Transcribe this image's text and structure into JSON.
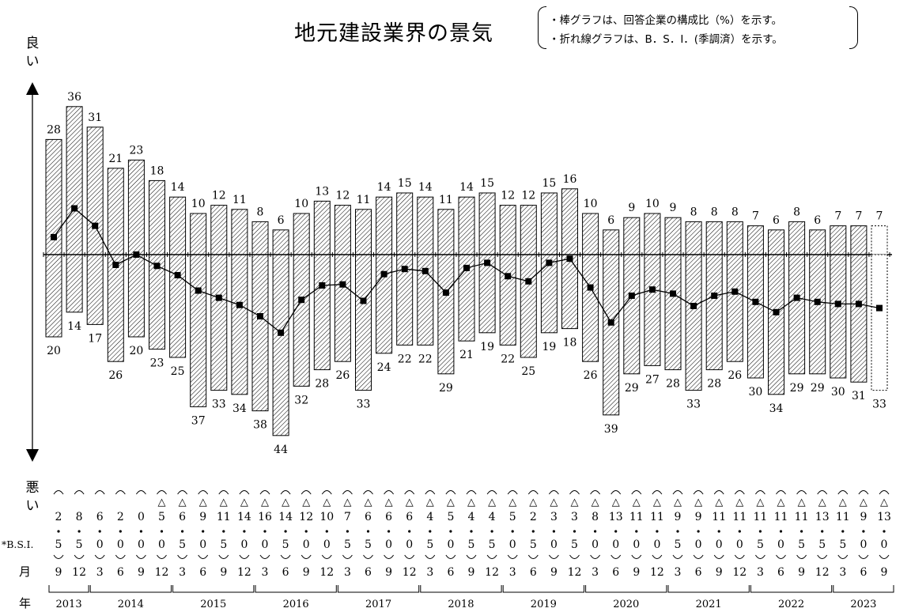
{
  "title": "地元建設業界の景気",
  "notes": [
    "・棒グラフは、回答企業の構成比（%）を示す。",
    "・折れ線グラフは、B．S．I．(季調済）を示す。"
  ],
  "axis_top_label": [
    "良",
    "い"
  ],
  "axis_bottom_label": [
    "悪",
    "い"
  ],
  "row_labels": {
    "bsi": "*B.S.I.",
    "month": "月",
    "year": "年"
  },
  "chart_data": {
    "type": "bar",
    "periods": [
      {
        "year": "2013",
        "month": "9"
      },
      {
        "year": "2013",
        "month": "12"
      },
      {
        "year": "2014",
        "month": "3"
      },
      {
        "year": "2014",
        "month": "6"
      },
      {
        "year": "2014",
        "month": "9"
      },
      {
        "year": "2014",
        "month": "12"
      },
      {
        "year": "2015",
        "month": "3"
      },
      {
        "year": "2015",
        "month": "6"
      },
      {
        "year": "2015",
        "month": "9"
      },
      {
        "year": "2015",
        "month": "12"
      },
      {
        "year": "2016",
        "month": "3"
      },
      {
        "year": "2016",
        "month": "6"
      },
      {
        "year": "2016",
        "month": "9"
      },
      {
        "year": "2016",
        "month": "12"
      },
      {
        "year": "2017",
        "month": "3"
      },
      {
        "year": "2017",
        "month": "6"
      },
      {
        "year": "2017",
        "month": "9"
      },
      {
        "year": "2017",
        "month": "12"
      },
      {
        "year": "2018",
        "month": "3"
      },
      {
        "year": "2018",
        "month": "6"
      },
      {
        "year": "2018",
        "month": "9"
      },
      {
        "year": "2018",
        "month": "12"
      },
      {
        "year": "2019",
        "month": "3"
      },
      {
        "year": "2019",
        "month": "6"
      },
      {
        "year": "2019",
        "month": "9"
      },
      {
        "year": "2019",
        "month": "12"
      },
      {
        "year": "2020",
        "month": "3"
      },
      {
        "year": "2020",
        "month": "6"
      },
      {
        "year": "2020",
        "month": "9"
      },
      {
        "year": "2020",
        "month": "12"
      },
      {
        "year": "2021",
        "month": "3"
      },
      {
        "year": "2021",
        "month": "6"
      },
      {
        "year": "2021",
        "month": "9"
      },
      {
        "year": "2021",
        "month": "12"
      },
      {
        "year": "2022",
        "month": "3"
      },
      {
        "year": "2022",
        "month": "6"
      },
      {
        "year": "2022",
        "month": "9"
      },
      {
        "year": "2022",
        "month": "12"
      },
      {
        "year": "2023",
        "month": "3"
      },
      {
        "year": "2023",
        "month": "6"
      },
      {
        "year": "2023",
        "month": "9"
      }
    ],
    "good": [
      28,
      36,
      31,
      21,
      23,
      18,
      14,
      10,
      12,
      11,
      8,
      6,
      10,
      13,
      12,
      11,
      14,
      15,
      14,
      11,
      14,
      15,
      12,
      12,
      15,
      16,
      10,
      6,
      9,
      10,
      9,
      8,
      8,
      8,
      7,
      6,
      8,
      6,
      7,
      7,
      7
    ],
    "bad": [
      20,
      14,
      17,
      26,
      20,
      23,
      25,
      37,
      33,
      34,
      38,
      44,
      32,
      28,
      26,
      33,
      24,
      22,
      22,
      29,
      21,
      19,
      22,
      25,
      19,
      18,
      26,
      39,
      29,
      27,
      28,
      33,
      28,
      26,
      30,
      34,
      29,
      29,
      30,
      31,
      33
    ],
    "bsi": [
      8.5,
      22.5,
      14.0,
      -5.0,
      -0.0,
      -5.5,
      -10.0,
      -17.5,
      -21.0,
      -24.5,
      -30.0,
      -38.0,
      -22.0,
      -15.0,
      -14.5,
      -22.5,
      -9.5,
      -7.0,
      -8.0,
      -18.5,
      -6.5,
      -4.0,
      -10.5,
      -13.0,
      -4.0,
      -2.0,
      -16.0,
      -33.0,
      -20.0,
      -17.0,
      -19.0,
      -25.0,
      -20.0,
      -18.0,
      -23.0,
      -28.0,
      -21.0,
      -23.0,
      -24.0,
      -24.0,
      -26.0
    ],
    "bsi_display": [
      {
        "sign": "",
        "int": "2",
        "dec": "5"
      },
      {
        "sign": "",
        "int": "8",
        "dec": "5"
      },
      {
        "sign": "",
        "int": "6",
        "dec": "0"
      },
      {
        "sign": "",
        "int": "2",
        "dec": "0"
      },
      {
        "sign": "",
        "int": "0",
        "dec": "0"
      },
      {
        "sign": "△",
        "int": "5",
        "dec": "0"
      },
      {
        "sign": "△",
        "int": "6",
        "dec": "5"
      },
      {
        "sign": "△",
        "int": "9",
        "dec": "0"
      },
      {
        "sign": "△",
        "int": "11",
        "dec": "5"
      },
      {
        "sign": "△",
        "int": "14",
        "dec": "0"
      },
      {
        "sign": "△",
        "int": "16",
        "dec": "0"
      },
      {
        "sign": "△",
        "int": "14",
        "dec": "5"
      },
      {
        "sign": "△",
        "int": "12",
        "dec": "0"
      },
      {
        "sign": "△",
        "int": "10",
        "dec": "0"
      },
      {
        "sign": "△",
        "int": "7",
        "dec": "5"
      },
      {
        "sign": "△",
        "int": "6",
        "dec": "5"
      },
      {
        "sign": "△",
        "int": "6",
        "dec": "0"
      },
      {
        "sign": "△",
        "int": "6",
        "dec": "0"
      },
      {
        "sign": "△",
        "int": "4",
        "dec": "5"
      },
      {
        "sign": "△",
        "int": "5",
        "dec": "0"
      },
      {
        "sign": "△",
        "int": "4",
        "dec": "5"
      },
      {
        "sign": "△",
        "int": "4",
        "dec": "5"
      },
      {
        "sign": "△",
        "int": "5",
        "dec": "0"
      },
      {
        "sign": "△",
        "int": "2",
        "dec": "5"
      },
      {
        "sign": "△",
        "int": "3",
        "dec": "0"
      },
      {
        "sign": "△",
        "int": "3",
        "dec": "5"
      },
      {
        "sign": "△",
        "int": "8",
        "dec": "0"
      },
      {
        "sign": "△",
        "int": "13",
        "dec": "0"
      },
      {
        "sign": "△",
        "int": "11",
        "dec": "0"
      },
      {
        "sign": "△",
        "int": "11",
        "dec": "0"
      },
      {
        "sign": "△",
        "int": "9",
        "dec": "5"
      },
      {
        "sign": "△",
        "int": "9",
        "dec": "0"
      },
      {
        "sign": "△",
        "int": "11",
        "dec": "0"
      },
      {
        "sign": "△",
        "int": "11",
        "dec": "0"
      },
      {
        "sign": "△",
        "int": "11",
        "dec": "5"
      },
      {
        "sign": "△",
        "int": "11",
        "dec": "0"
      },
      {
        "sign": "△",
        "int": "11",
        "dec": "5"
      },
      {
        "sign": "△",
        "int": "13",
        "dec": "5"
      },
      {
        "sign": "△",
        "int": "11",
        "dec": "5"
      },
      {
        "sign": "△",
        "int": "9",
        "dec": "0"
      },
      {
        "sign": "△",
        "int": "13",
        "dec": "0"
      }
    ],
    "years": [
      "2013",
      "2014",
      "2015",
      "2016",
      "2017",
      "2018",
      "2019",
      "2020",
      "2021",
      "2022",
      "2023"
    ],
    "forecast_last": true,
    "colors": {
      "bar_hatch": "#000000",
      "line": "#000000",
      "background": "#ffffff"
    }
  }
}
